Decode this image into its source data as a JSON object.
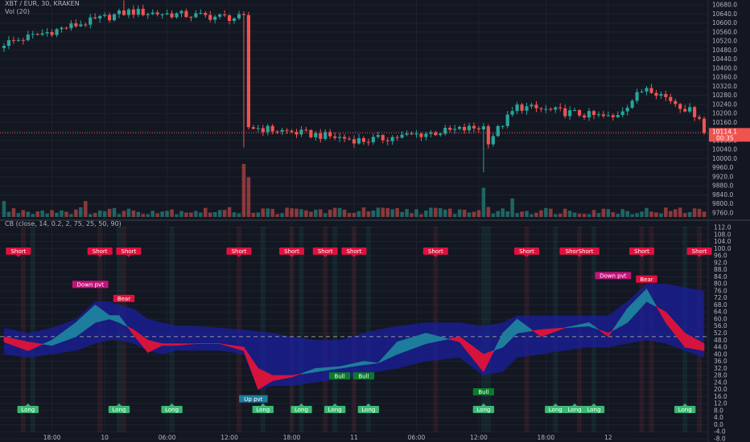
{
  "header": {
    "symbol_line": "XBT / EUR, 30, KRAKEN",
    "volume_label": "Vol (20)",
    "indicator_label": "CB (close, 14, 0.2, 2, 75, 25, 50, 90)"
  },
  "price_tag": {
    "value": "10114.1",
    "countdown": "00:35"
  },
  "time_axis": [
    "18:00",
    "10",
    "06:00",
    "12:00",
    "18:00",
    "11",
    "06:00",
    "12:00",
    "18:00",
    "12"
  ],
  "colors": {
    "background": "#131722",
    "bull": "#26a69a",
    "bear": "#ef5350",
    "band": "#1a1f9e",
    "fill_up": "#1e7d9c",
    "fill_down": "#d5143c",
    "short_label": "#e0103e",
    "long_label": "#38b872",
    "pivot_label": "#c2137a",
    "price_tag": "#ef5350"
  },
  "chart_data": [
    {
      "type": "candlestick",
      "title": "XBT / EUR, 30, KRAKEN",
      "y_axis_ticks": [
        "10680.0",
        "10640.0",
        "10600.0",
        "10560.0",
        "10520.0",
        "10480.0",
        "10440.0",
        "10400.0",
        "10360.0",
        "10320.0",
        "10280.0",
        "10240.0",
        "10200.0",
        "10160.0",
        "10120.0",
        "10080.0",
        "10040.0",
        "10000.0",
        "9960.0",
        "9920.0",
        "9880.0",
        "9840.0",
        "9800.0",
        "9760.0"
      ],
      "last_price": 10114.1,
      "segments": [
        {
          "from": 0,
          "to": 26,
          "start": 10510,
          "end": 10650
        },
        {
          "from": 26,
          "to": 50,
          "start": 10650,
          "end": 10620
        },
        {
          "from": 50,
          "to": 51,
          "start": 10620,
          "end": 10140
        },
        {
          "from": 51,
          "to": 75,
          "start": 10140,
          "end": 10080
        },
        {
          "from": 75,
          "to": 100,
          "start": 10080,
          "end": 10140
        },
        {
          "from": 100,
          "to": 101,
          "start": 10140,
          "end": 10080
        },
        {
          "from": 101,
          "to": 107,
          "start": 10080,
          "end": 10230
        },
        {
          "from": 107,
          "to": 127,
          "start": 10230,
          "end": 10180
        },
        {
          "from": 127,
          "to": 134,
          "start": 10180,
          "end": 10320
        },
        {
          "from": 134,
          "to": 146,
          "start": 10320,
          "end": 10175
        }
      ],
      "wick_spikes": [
        {
          "bar": 25,
          "high": 10700
        },
        {
          "bar": 50,
          "low": 10050
        },
        {
          "bar": 100,
          "low": 9940
        }
      ]
    },
    {
      "type": "bar",
      "title": "Vol (20)",
      "spikes": [
        {
          "bar": 50,
          "value": 1.0
        },
        {
          "bar": 51,
          "value": 0.75
        },
        {
          "bar": 100,
          "value": 0.55
        },
        {
          "bar": 106,
          "value": 0.35
        },
        {
          "bar": 0,
          "value": 0.3
        },
        {
          "bar": 17,
          "value": 0.3
        }
      ]
    },
    {
      "type": "line",
      "title": "CB (close, 14, 0.2, 2, 75, 25, 50, 90)",
      "y_axis_ticks": [
        "112.0",
        "108.0",
        "104.0",
        "100.0",
        "96.0",
        "92.0",
        "88.0",
        "84.0",
        "80.0",
        "76.0",
        "72.0",
        "68.0",
        "64.0",
        "60.0",
        "56.0",
        "52.0",
        "48.0",
        "44.0",
        "40.0",
        "36.0",
        "32.0",
        "28.0",
        "24.0",
        "20.0",
        "16.0",
        "12.0",
        "8.0",
        "4.0",
        "0.0",
        "-4.0",
        "-8.0"
      ],
      "midline": 50,
      "x": [
        0,
        5,
        10,
        15,
        19,
        22,
        24,
        27,
        30,
        33,
        36,
        40,
        45,
        50,
        53,
        56,
        60,
        65,
        70,
        75,
        78,
        82,
        88,
        95,
        100,
        104,
        107,
        112,
        117,
        122,
        126,
        130,
        134,
        138,
        142,
        146
      ],
      "oscillator": [
        47,
        42,
        48,
        58,
        68,
        62,
        62,
        51,
        41,
        45,
        45,
        46,
        46,
        42,
        20,
        25,
        27,
        32,
        33,
        36,
        35,
        47,
        52,
        47,
        30,
        52,
        60,
        50,
        55,
        58,
        50,
        66,
        77,
        58,
        44,
        42
      ],
      "signal": [
        50,
        47,
        45,
        50,
        58,
        60,
        58,
        54,
        48,
        46,
        46,
        46,
        46,
        44,
        32,
        28,
        28,
        30,
        32,
        34,
        35,
        40,
        46,
        50,
        40,
        44,
        52,
        54,
        55,
        56,
        52,
        58,
        70,
        64,
        52,
        46
      ],
      "upper_band": [
        55,
        52,
        55,
        60,
        70,
        70,
        68,
        66,
        60,
        58,
        56,
        56,
        55,
        54,
        53,
        52,
        50,
        48,
        48,
        52,
        54,
        56,
        58,
        58,
        56,
        58,
        62,
        62,
        62,
        62,
        62,
        70,
        80,
        80,
        78,
        76
      ],
      "lower_band": [
        40,
        38,
        40,
        42,
        46,
        48,
        48,
        46,
        42,
        40,
        42,
        42,
        42,
        40,
        20,
        22,
        22,
        24,
        26,
        28,
        30,
        32,
        36,
        38,
        28,
        30,
        38,
        40,
        42,
        44,
        44,
        46,
        48,
        46,
        42,
        38
      ],
      "labels": [
        {
          "text": "Short",
          "bar": 3,
          "row": "top"
        },
        {
          "text": "Short",
          "bar": 20,
          "row": "top"
        },
        {
          "text": "Short",
          "bar": 26,
          "row": "top"
        },
        {
          "text": "Short",
          "bar": 49,
          "row": "top"
        },
        {
          "text": "Short",
          "bar": 60,
          "row": "top"
        },
        {
          "text": "Short",
          "bar": 67,
          "row": "top"
        },
        {
          "text": "Short",
          "bar": 73,
          "row": "top"
        },
        {
          "text": "Short",
          "bar": 90,
          "row": "top"
        },
        {
          "text": "Short",
          "bar": 109,
          "row": "top"
        },
        {
          "text": "ShorShort",
          "bar": 120,
          "row": "top"
        },
        {
          "text": "Short",
          "bar": 133,
          "row": "top"
        },
        {
          "text": "Short",
          "bar": 145,
          "row": "top"
        },
        {
          "text": "Down pvt",
          "bar": 18,
          "row": "value",
          "value": 79
        },
        {
          "text": "Bear",
          "bar": 25,
          "row": "value",
          "value": 71
        },
        {
          "text": "Down pvt",
          "bar": 127,
          "row": "value",
          "value": 84
        },
        {
          "text": "Bear",
          "bar": 134,
          "row": "value",
          "value": 82
        },
        {
          "text": "Up pvt",
          "bar": 52,
          "row": "value",
          "value": 14
        },
        {
          "text": "Bull",
          "bar": 70,
          "row": "value",
          "value": 27
        },
        {
          "text": "Bull",
          "bar": 75,
          "row": "value",
          "value": 27
        },
        {
          "text": "Bull",
          "bar": 100,
          "row": "value",
          "value": 18
        },
        {
          "text": "Long",
          "bar": 5,
          "row": "bottom"
        },
        {
          "text": "Long",
          "bar": 24,
          "row": "bottom"
        },
        {
          "text": "Long",
          "bar": 35,
          "row": "bottom"
        },
        {
          "text": "Long",
          "bar": 54,
          "row": "bottom"
        },
        {
          "text": "Long",
          "bar": 62,
          "row": "bottom"
        },
        {
          "text": "Long",
          "bar": 69,
          "row": "bottom"
        },
        {
          "text": "Long",
          "bar": 76,
          "row": "bottom"
        },
        {
          "text": "Long",
          "bar": 100,
          "row": "bottom"
        },
        {
          "text": "Long",
          "bar": 115,
          "row": "bottom"
        },
        {
          "text": "Long",
          "bar": 119,
          "row": "bottom"
        },
        {
          "text": "Long",
          "bar": 123,
          "row": "bottom"
        },
        {
          "text": "Long",
          "bar": 142,
          "row": "bottom"
        }
      ]
    }
  ]
}
